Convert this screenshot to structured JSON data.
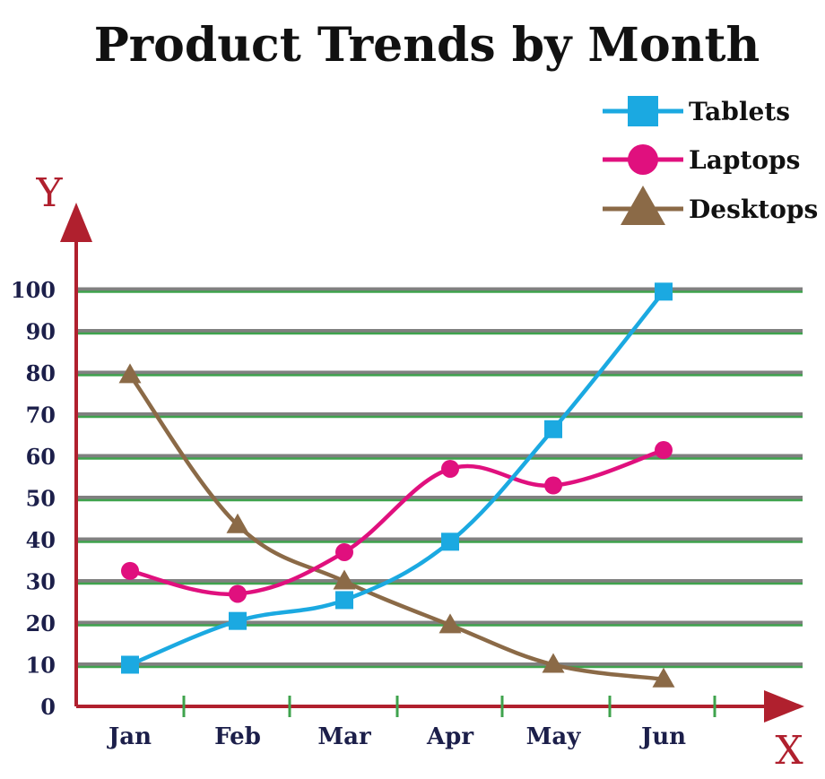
{
  "chart_data": {
    "type": "line",
    "title": "Product Trends by Month",
    "xlabel": "X",
    "ylabel": "Y",
    "categories": [
      "Jan",
      "Feb",
      "Mar",
      "Apr",
      "May",
      "Jun"
    ],
    "ylim": [
      0,
      100
    ],
    "yticks": [
      0,
      10,
      20,
      30,
      40,
      50,
      60,
      70,
      80,
      90,
      100
    ],
    "ytick_labels": [
      "0",
      "10",
      "20",
      "30",
      "40",
      "50",
      "60",
      "70",
      "80",
      "90",
      "100"
    ],
    "grid": true,
    "legend_position": "top-right",
    "series": [
      {
        "name": "Tablets",
        "values": [
          10,
          20.5,
          25.5,
          39.5,
          66.5,
          99.5
        ],
        "color": "#1ba9e1",
        "marker": "square"
      },
      {
        "name": "Laptops",
        "values": [
          32.5,
          27,
          37,
          57,
          53,
          61.5
        ],
        "color": "#e0107e",
        "marker": "circle"
      },
      {
        "name": "Desktops",
        "values": [
          79.5,
          43.5,
          30,
          19.5,
          10,
          6.5
        ],
        "color": "#8b6a47",
        "marker": "triangle"
      }
    ]
  }
}
